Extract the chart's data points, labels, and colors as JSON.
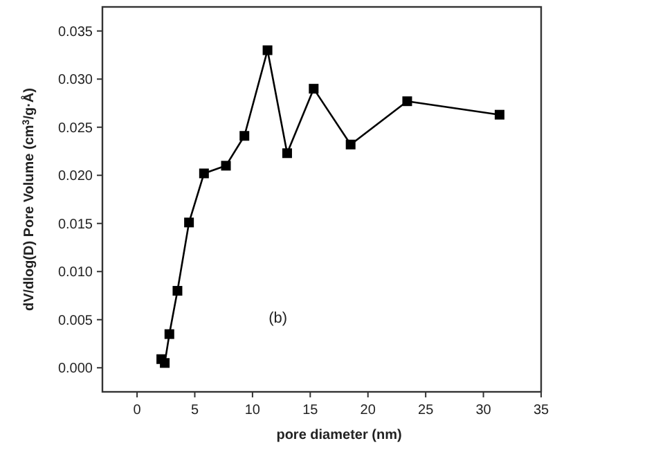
{
  "chart_data": {
    "type": "line",
    "xlabel": "pore diameter (nm)",
    "ylabel": "dV/dlog(D) Pore Volume (cm$^{3}$/g·Å)",
    "annotations": [
      "(b)"
    ],
    "x": [
      2.1,
      2.4,
      2.8,
      3.5,
      4.5,
      5.8,
      7.7,
      9.3,
      11.3,
      13.0,
      15.3,
      18.5,
      23.4,
      31.4
    ],
    "series": [
      {
        "color": "#000000",
        "values": [
          0.0009,
          0.0005,
          0.0035,
          0.008,
          0.0151,
          0.0202,
          0.021,
          0.0241,
          0.033,
          0.0223,
          0.029,
          0.0232,
          0.0277,
          0.0263
        ]
      }
    ],
    "xlim": [
      -3,
      35
    ],
    "xticks": [
      0,
      5,
      10,
      15,
      20,
      25,
      30,
      35
    ],
    "ylim": [
      -0.0025,
      0.0375
    ],
    "yticks": [
      {
        "value": 0,
        "label": "0.000"
      },
      {
        "value": 0.005,
        "label": "0.005"
      },
      {
        "value": 0.01,
        "label": "0.010"
      },
      {
        "value": 0.015,
        "label": "0.015"
      },
      {
        "value": 0.02,
        "label": "0.020"
      },
      {
        "value": 0.025,
        "label": "0.025"
      },
      {
        "value": 0.03,
        "label": "0.030"
      },
      {
        "value": 0.035,
        "label": "0.035"
      }
    ],
    "marker": "square",
    "grid": false
  }
}
